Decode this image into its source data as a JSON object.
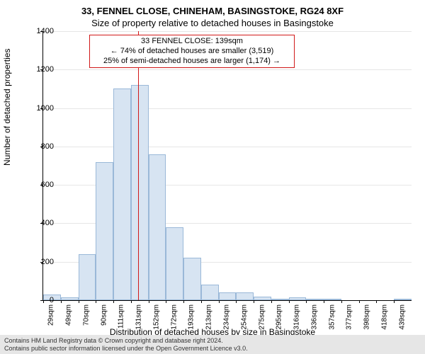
{
  "title": "33, FENNEL CLOSE, CHINEHAM, BASINGSTOKE, RG24 8XF",
  "subtitle": "Size of property relative to detached houses in Basingstoke",
  "ylabel": "Number of detached properties",
  "xlabel": "Distribution of detached houses by size in Basingstoke",
  "footer_line1": "Contains HM Land Registry data © Crown copyright and database right 2024.",
  "footer_line2": "Contains public sector information licensed under the Open Government Licence v3.0.",
  "chart": {
    "type": "histogram",
    "background_color": "#ffffff",
    "grid_color": "#e6e6e6",
    "axis_color": "#000000",
    "bar_fill": "#d7e4f2",
    "bar_border": "#9ab8d8",
    "ref_line_color": "#d11919",
    "annotation_border": "#d11919",
    "ylim": [
      0,
      1400
    ],
    "ytick_step": 200,
    "yticks": [
      0,
      200,
      400,
      600,
      800,
      1000,
      1200,
      1400
    ],
    "xtick_labels": [
      "29sqm",
      "49sqm",
      "70sqm",
      "90sqm",
      "111sqm",
      "131sqm",
      "152sqm",
      "172sqm",
      "193sqm",
      "213sqm",
      "234sqm",
      "254sqm",
      "275sqm",
      "295sqm",
      "316sqm",
      "336sqm",
      "357sqm",
      "377sqm",
      "398sqm",
      "418sqm",
      "439sqm"
    ],
    "bars": [
      {
        "i": 0,
        "v": 30
      },
      {
        "i": 1,
        "v": 15
      },
      {
        "i": 2,
        "v": 240
      },
      {
        "i": 3,
        "v": 720
      },
      {
        "i": 4,
        "v": 1100
      },
      {
        "i": 5,
        "v": 1120
      },
      {
        "i": 6,
        "v": 760
      },
      {
        "i": 7,
        "v": 380
      },
      {
        "i": 8,
        "v": 220
      },
      {
        "i": 9,
        "v": 80
      },
      {
        "i": 10,
        "v": 40
      },
      {
        "i": 11,
        "v": 40
      },
      {
        "i": 12,
        "v": 20
      },
      {
        "i": 13,
        "v": 3
      },
      {
        "i": 14,
        "v": 15
      },
      {
        "i": 15,
        "v": 3
      },
      {
        "i": 16,
        "v": 5
      },
      {
        "i": 17,
        "v": 0
      },
      {
        "i": 18,
        "v": 0
      },
      {
        "i": 19,
        "v": 0
      },
      {
        "i": 20,
        "v": 3
      }
    ],
    "ref_value_sqm": 139,
    "ref_bin_pos": 5.4,
    "annotation": {
      "line1": "33 FENNEL CLOSE: 139sqm",
      "line2": "← 74% of detached houses are smaller (3,519)",
      "line3": "25% of semi-detached houses are larger (1,174) →"
    },
    "label_fontsize": 12,
    "tick_fontsize": 11,
    "xtick_fontsize": 10,
    "title_fontsize": 13,
    "bar_count": 21
  }
}
